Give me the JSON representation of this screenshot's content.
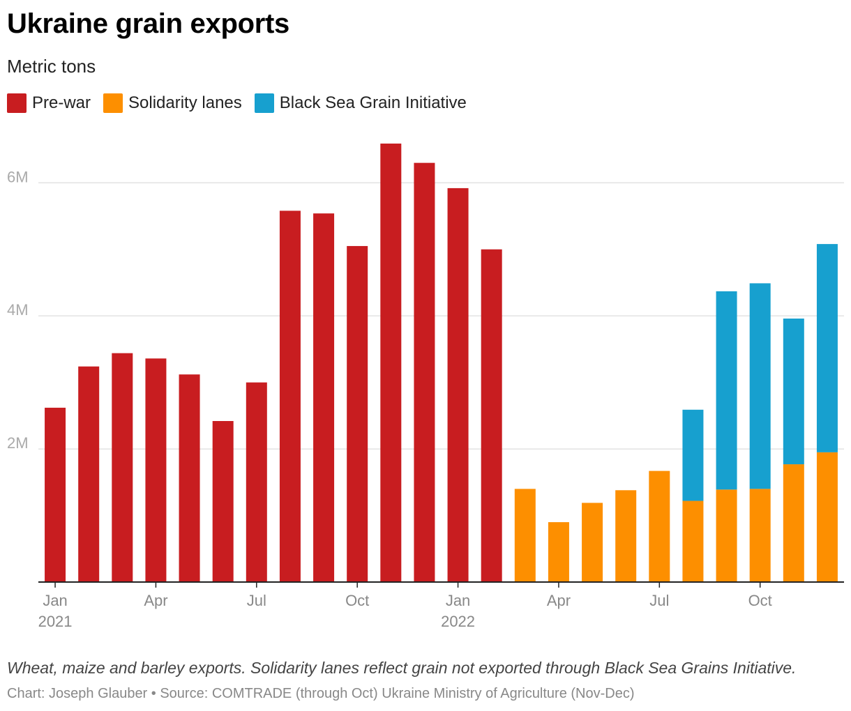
{
  "colors": {
    "prewar": "#c81d20",
    "solidarity": "#fd8f00",
    "blacksea": "#17a0cf"
  },
  "legend": [
    {
      "label": "Pre-war",
      "color": "#c81d20"
    },
    {
      "label": "Solidarity lanes",
      "color": "#fd8f00"
    },
    {
      "label": "Black Sea Grain Initiative",
      "color": "#17a0cf"
    }
  ],
  "note": "Wheat, maize and barley exports. Solidarity lanes reflect grain not exported through Black Sea Grains Initiative.",
  "credit": "Chart: Joseph Glauber • Source: COMTRADE (through Oct) Ukraine Ministry of Agriculture (Nov-Dec)",
  "chart_data": {
    "type": "bar",
    "stacked": true,
    "title": "Ukraine grain exports",
    "subtitle": "Metric tons",
    "xlabel": "",
    "ylabel": "",
    "ylim": [
      0,
      6600000
    ],
    "yticks": [
      {
        "value": 2000000,
        "label": "2M"
      },
      {
        "value": 4000000,
        "label": "4M"
      },
      {
        "value": 6000000,
        "label": "6M"
      }
    ],
    "categories": [
      "2021-01",
      "2021-02",
      "2021-03",
      "2021-04",
      "2021-05",
      "2021-06",
      "2021-07",
      "2021-08",
      "2021-09",
      "2021-10",
      "2021-11",
      "2021-12",
      "2022-01",
      "2022-02",
      "2022-03",
      "2022-04",
      "2022-05",
      "2022-06",
      "2022-07",
      "2022-08",
      "2022-09",
      "2022-10",
      "2022-11",
      "2022-12"
    ],
    "xtick_labels": [
      {
        "index": 0,
        "label": "Jan",
        "sublabel": "2021"
      },
      {
        "index": 3,
        "label": "Apr"
      },
      {
        "index": 6,
        "label": "Jul"
      },
      {
        "index": 9,
        "label": "Oct"
      },
      {
        "index": 12,
        "label": "Jan",
        "sublabel": "2022"
      },
      {
        "index": 15,
        "label": "Apr"
      },
      {
        "index": 18,
        "label": "Jul"
      },
      {
        "index": 21,
        "label": "Oct"
      }
    ],
    "series": [
      {
        "name": "Pre-war",
        "key": "prewar",
        "values": [
          2620000,
          3240000,
          3440000,
          3360000,
          3120000,
          2420000,
          3000000,
          5580000,
          5540000,
          5050000,
          6590000,
          6300000,
          5920000,
          5000000,
          0,
          0,
          0,
          0,
          0,
          0,
          0,
          0,
          0,
          0
        ]
      },
      {
        "name": "Solidarity lanes",
        "key": "solidarity",
        "values": [
          0,
          0,
          0,
          0,
          0,
          0,
          0,
          0,
          0,
          0,
          0,
          0,
          0,
          0,
          1400000,
          900000,
          1190000,
          1380000,
          1670000,
          1220000,
          1390000,
          1400000,
          1770000,
          1950000
        ]
      },
      {
        "name": "Black Sea Grain Initiative",
        "key": "blacksea",
        "values": [
          0,
          0,
          0,
          0,
          0,
          0,
          0,
          0,
          0,
          0,
          0,
          0,
          0,
          0,
          0,
          0,
          0,
          0,
          0,
          1370000,
          2980000,
          3090000,
          2190000,
          3130000
        ]
      }
    ]
  }
}
